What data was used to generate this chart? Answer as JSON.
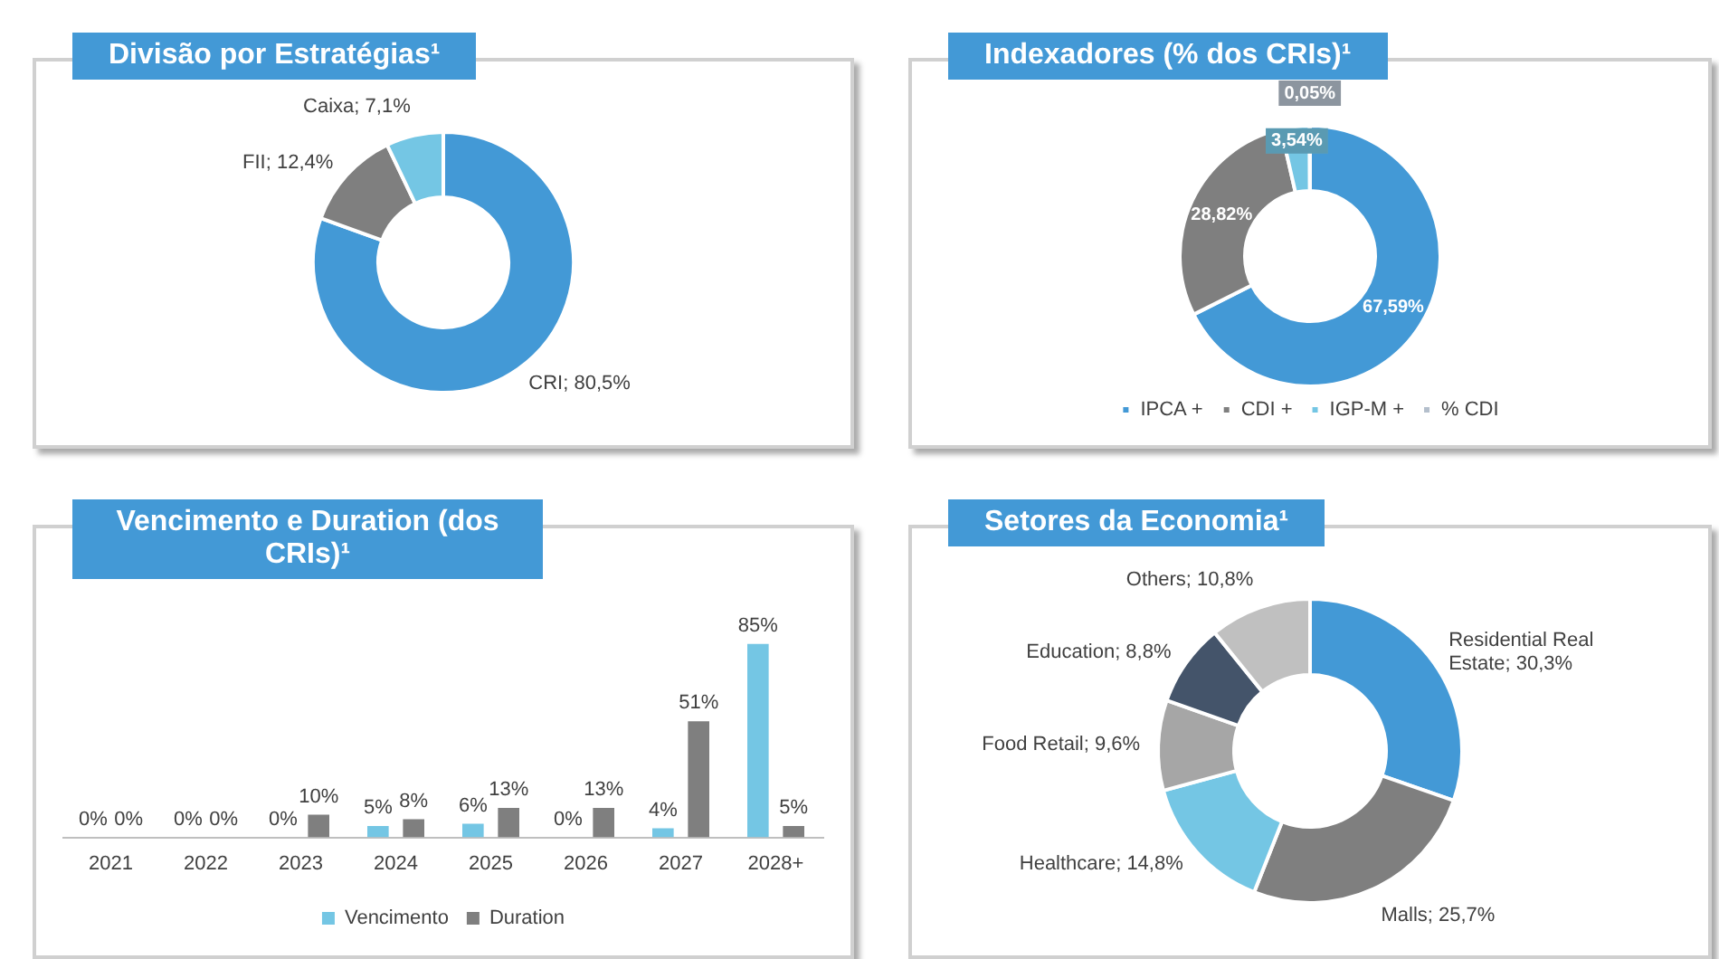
{
  "chart_data": [
    {
      "type": "donut",
      "title": "Divisão por Estratégias¹",
      "categories": [
        "CRI",
        "FII",
        "Caixa"
      ],
      "values": [
        80.5,
        12.4,
        7.1
      ],
      "colors": [
        "#4399d6",
        "#7f7f7f",
        "#74c6e4"
      ],
      "value_labels": [
        "80,5%",
        "12,4%",
        "7,1%"
      ],
      "legend": false
    },
    {
      "type": "donut",
      "title": "Indexadores (% dos CRIs)¹",
      "categories": [
        "IPCA +",
        "CDI +",
        "IGP-M +",
        "% CDI"
      ],
      "values": [
        67.59,
        28.82,
        3.54,
        0.05
      ],
      "colors": [
        "#4399d6",
        "#7f7f7f",
        "#74c6e4",
        "#b4bfcc"
      ],
      "value_labels": [
        "67,59%",
        "28,82%",
        "3,54%",
        "0,05%"
      ],
      "legend": "bottom"
    },
    {
      "type": "bar",
      "title": "Vencimento e Duration (dos CRIs)¹",
      "categories": [
        "2021",
        "2022",
        "2023",
        "2024",
        "2025",
        "2026",
        "2027",
        "2028+"
      ],
      "series": [
        {
          "name": "Vencimento",
          "color": "#74c6e4",
          "values": [
            0,
            0,
            0,
            5,
            6,
            0,
            4,
            85
          ],
          "value_labels": [
            "0%",
            "0%",
            "0%",
            "5%",
            "6%",
            "0%",
            "4%",
            "85%"
          ]
        },
        {
          "name": "Duration",
          "color": "#7f7f7f",
          "values": [
            0,
            0,
            10,
            8,
            13,
            13,
            51,
            5
          ],
          "value_labels": [
            "0%",
            "0%",
            "10%",
            "8%",
            "13%",
            "13%",
            "51%",
            "5%"
          ]
        }
      ],
      "legend": "bottom",
      "grid": false
    },
    {
      "type": "donut",
      "title": "Setores da Economia¹",
      "categories": [
        "Residential Real Estate",
        "Malls",
        "Healthcare",
        "Food Retail",
        "Education",
        "Others"
      ],
      "values": [
        30.3,
        25.7,
        14.8,
        9.6,
        8.8,
        10.8
      ],
      "colors": [
        "#4399d6",
        "#7f7f7f",
        "#74c6e4",
        "#a6a6a6",
        "#44546a",
        "#c0c0c0"
      ],
      "value_labels": [
        "30,3%",
        "25,7%",
        "14,8%",
        "9,6%",
        "8,8%",
        "10,8%"
      ],
      "legend": false
    }
  ]
}
